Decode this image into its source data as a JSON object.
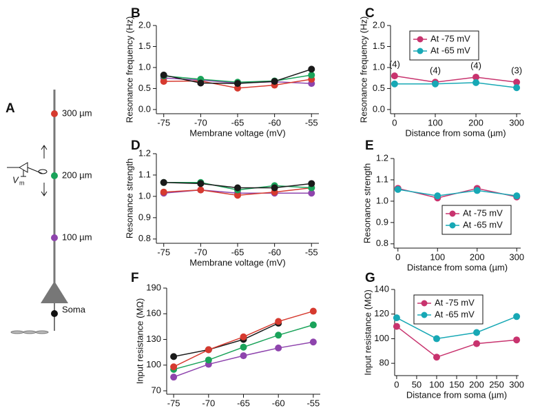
{
  "panel_a": {
    "label": "A",
    "sites": [
      "300 µm",
      "200 µm",
      "100 µm"
    ],
    "soma": "Soma",
    "vm": "V",
    "vm_sub": "m"
  },
  "chart_data": [
    {
      "type": "line",
      "panel": "B",
      "xlabel": "Membrane voltage (mV)",
      "ylabel": "Resonance frequency (Hz)",
      "x": [
        -75,
        -70,
        -65,
        -60,
        -55
      ],
      "xlim": [
        -76,
        -54
      ],
      "xticks": [
        -75,
        -70,
        -65,
        -60,
        -55
      ],
      "ylim": [
        -0.1,
        2.0
      ],
      "yticks": [
        {
          "value": 0,
          "label": "0.0"
        },
        0.5,
        {
          "value": 1,
          "label": "1.0"
        },
        1.5,
        {
          "value": 2,
          "label": "2.0"
        }
      ],
      "series": [
        {
          "color": "#8e44ad",
          "values": [
            0.75,
            0.7,
            0.63,
            0.66,
            0.62
          ]
        },
        {
          "color": "#d63a2f",
          "values": [
            0.67,
            0.68,
            0.51,
            0.58,
            0.72
          ]
        },
        {
          "color": "#1aa35a",
          "values": [
            0.8,
            0.72,
            0.65,
            0.68,
            0.82
          ]
        },
        {
          "color": "#1a1a1a",
          "values": [
            0.82,
            0.63,
            0.62,
            0.67,
            0.96
          ]
        }
      ]
    },
    {
      "type": "line",
      "panel": "C",
      "xlabel": "Distance from soma (µm)",
      "ylabel": "Resonance frequency (Hz)",
      "x": [
        0,
        100,
        200,
        300
      ],
      "xlim": [
        -10,
        310
      ],
      "xticks": [
        0,
        100,
        200,
        300
      ],
      "ylim": [
        -0.1,
        2.0
      ],
      "yticks": [
        {
          "value": 0,
          "label": "0.0"
        },
        0.5,
        {
          "value": 1,
          "label": "1.0"
        },
        1.5,
        {
          "value": 2,
          "label": "2.0"
        }
      ],
      "legend": "upper left",
      "point_labels": [
        "(4)",
        "(4)",
        "(4)",
        "(3)"
      ],
      "series": [
        {
          "name": "At -75 mV",
          "color": "#c8336e",
          "values": [
            0.8,
            0.65,
            0.77,
            0.65
          ]
        },
        {
          "name": "At -65 mV",
          "color": "#17a8b5",
          "values": [
            0.61,
            0.61,
            0.64,
            0.52
          ]
        }
      ]
    },
    {
      "type": "line",
      "panel": "D",
      "xlabel": "Membrane voltage (mV)",
      "ylabel": "Resonance strength",
      "x": [
        -75,
        -70,
        -65,
        -60,
        -55
      ],
      "xlim": [
        -76,
        -54
      ],
      "xticks": [
        -75,
        -70,
        -65,
        -60,
        -55
      ],
      "ylim": [
        0.78,
        1.2
      ],
      "yticks": [
        0.8,
        0.9,
        {
          "value": 1,
          "label": "1.0"
        },
        1.1,
        1.2
      ],
      "series": [
        {
          "color": "#8e44ad",
          "values": [
            1.015,
            1.03,
            1.015,
            1.015,
            1.015
          ]
        },
        {
          "color": "#d63a2f",
          "values": [
            1.02,
            1.03,
            1.005,
            1.02,
            1.04
          ]
        },
        {
          "color": "#1aa35a",
          "values": [
            1.065,
            1.065,
            1.03,
            1.05,
            1.04
          ]
        },
        {
          "color": "#1a1a1a",
          "values": [
            1.065,
            1.06,
            1.04,
            1.04,
            1.06
          ]
        }
      ]
    },
    {
      "type": "line",
      "panel": "E",
      "xlabel": "Distance from soma (µm)",
      "ylabel": "Resonance strength",
      "x": [
        0,
        100,
        200,
        300
      ],
      "xlim": [
        -10,
        310
      ],
      "xticks": [
        0,
        100,
        200,
        300
      ],
      "ylim": [
        0.78,
        1.2
      ],
      "yticks": [
        0.8,
        0.9,
        {
          "value": 1,
          "label": "1.0"
        },
        1.1,
        1.2
      ],
      "legend": "lower center",
      "series": [
        {
          "name": "At -75 mV",
          "color": "#c8336e",
          "values": [
            1.06,
            1.015,
            1.06,
            1.02
          ]
        },
        {
          "name": "At -65 mV",
          "color": "#17a8b5",
          "values": [
            1.055,
            1.025,
            1.05,
            1.025
          ]
        }
      ]
    },
    {
      "type": "line",
      "panel": "F",
      "xlabel": "Membrane voltage (mV)",
      "ylabel": "Input resistance (MΩ)",
      "x": [
        -75,
        -70,
        -65,
        -60,
        -55
      ],
      "xlim": [
        -76,
        -54
      ],
      "xticks": [
        -75,
        -70,
        -65,
        -60,
        -55
      ],
      "ylim": [
        66,
        190
      ],
      "yticks": [
        70,
        100,
        130,
        160,
        190
      ],
      "series": [
        {
          "color": "#1a1a1a",
          "values": [
            110,
            118,
            130,
            149,
            null
          ]
        },
        {
          "color": "#8e44ad",
          "values": [
            86,
            101,
            111,
            120,
            127
          ]
        },
        {
          "color": "#1aa35a",
          "values": [
            95,
            106,
            121,
            135,
            147
          ]
        },
        {
          "color": "#d63a2f",
          "values": [
            98,
            118,
            133,
            151,
            163
          ]
        }
      ]
    },
    {
      "type": "line",
      "panel": "G",
      "xlabel": "Distance from soma (µm)",
      "ylabel": "Input resistance (MΩ)",
      "x": [
        0,
        100,
        200,
        300
      ],
      "xlim": [
        -5,
        305
      ],
      "xticks": [
        0,
        50,
        100,
        150,
        200,
        250,
        300
      ],
      "ylim": [
        70,
        140
      ],
      "yticks": [
        80,
        100,
        120,
        140
      ],
      "legend": "upper left",
      "series": [
        {
          "name": "At -75 mV",
          "color": "#c8336e",
          "values": [
            110,
            85,
            96,
            99
          ]
        },
        {
          "name": "At -65 mV",
          "color": "#17a8b5",
          "values": [
            117,
            100,
            105,
            118
          ]
        }
      ]
    }
  ]
}
